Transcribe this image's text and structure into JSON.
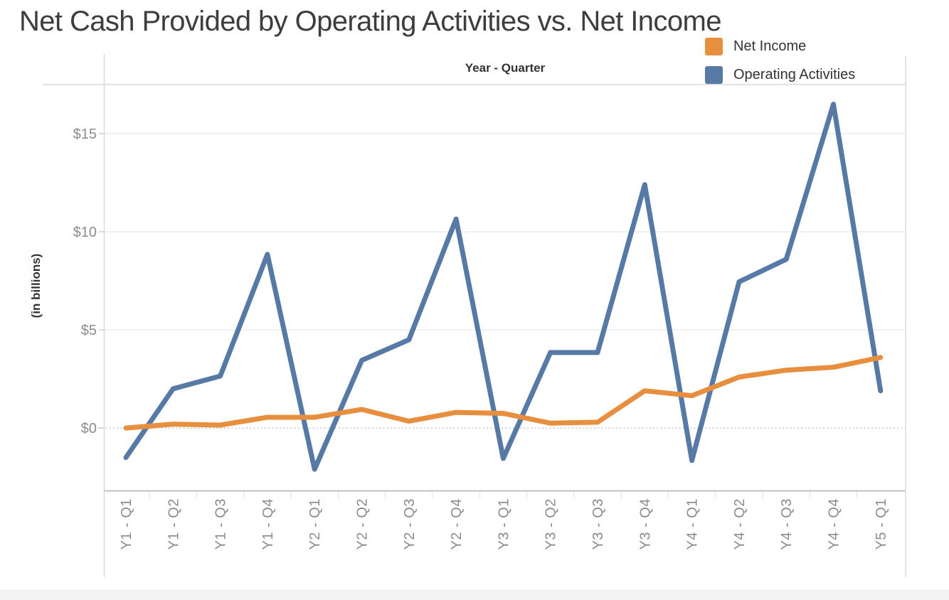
{
  "title": "Net Cash Provided by Operating Activities vs. Net Income",
  "axes": {
    "x_title": "Year - Quarter",
    "y_title": "(in billions)"
  },
  "legend": {
    "items": [
      {
        "label": "Net Income",
        "color": "#e78f3e"
      },
      {
        "label": "Operating Activities",
        "color": "#5779a6"
      }
    ]
  },
  "colors": {
    "net_income": "#e78f3e",
    "operating_activities": "#5779a6",
    "grid_line": "#ececec",
    "zero_line": "#bdbdbd",
    "axis_border": "#d8d8d8",
    "axis_bottom": "#c2c2c2",
    "tick_label": "#8c8c8c",
    "header_text": "#333333",
    "title_text": "#3d3d3d",
    "bottom_bar": "#f4f4f4"
  },
  "chart_data": {
    "type": "line",
    "title": "Net Cash Provided by Operating Activities vs. Net Income",
    "xlabel": "Year - Quarter",
    "ylabel": "(in billions)",
    "legend_position": "top-right",
    "grid": "horizontal",
    "zero_line_style": "dotted",
    "ylim": [
      -3.2,
      17.5
    ],
    "y_ticks": [
      {
        "value": 0,
        "label": "$0"
      },
      {
        "value": 5,
        "label": "$5"
      },
      {
        "value": 10,
        "label": "$10"
      },
      {
        "value": 15,
        "label": "$15"
      }
    ],
    "categories": [
      "Y1 - Q1",
      "Y1 - Q2",
      "Y1 - Q3",
      "Y1 - Q4",
      "Y2 - Q1",
      "Y2 - Q2",
      "Y2 - Q3",
      "Y2 - Q4",
      "Y3 - Q1",
      "Y3 - Q2",
      "Y3 - Q3",
      "Y3 - Q4",
      "Y4 - Q1",
      "Y4 - Q2",
      "Y4 - Q3",
      "Y4 - Q4",
      "Y5 - Q1"
    ],
    "series": [
      {
        "name": "Net Income",
        "color": "#e78f3e",
        "values": [
          0.0,
          0.2,
          0.15,
          0.55,
          0.55,
          0.95,
          0.35,
          0.8,
          0.75,
          0.25,
          0.3,
          1.9,
          1.65,
          2.6,
          2.95,
          3.1,
          3.6
        ]
      },
      {
        "name": "Operating Activities",
        "color": "#5779a6",
        "values": [
          -1.5,
          2.0,
          2.65,
          8.85,
          -2.1,
          3.45,
          4.5,
          10.65,
          -1.55,
          3.85,
          3.85,
          12.4,
          -1.65,
          7.45,
          8.6,
          16.5,
          1.9
        ]
      }
    ]
  }
}
